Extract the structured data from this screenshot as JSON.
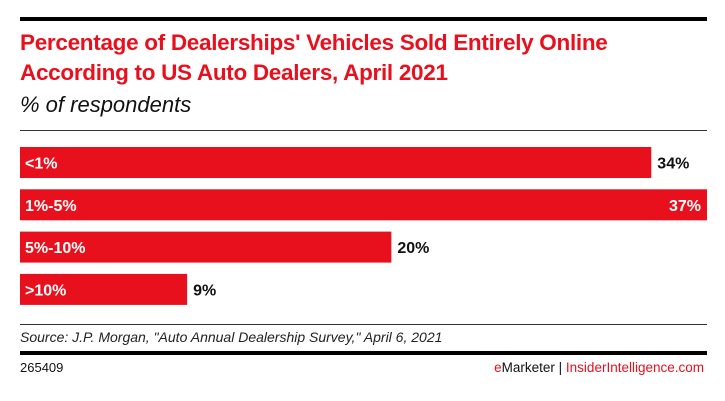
{
  "header": {
    "title": "Percentage of Dealerships' Vehicles Sold Entirely Online According to US Auto Dealers, April 2021",
    "subtitle": "% of respondents"
  },
  "chart_data": {
    "type": "bar",
    "orientation": "horizontal",
    "title": "Percentage of Dealerships' Vehicles Sold Entirely Online According to US Auto Dealers, April 2021",
    "subtitle": "% of respondents",
    "categories": [
      "<1%",
      "1%-5%",
      "5%-10%",
      ">10%"
    ],
    "values": [
      34,
      37,
      20,
      9
    ],
    "value_labels": [
      "34%",
      "37%",
      "20%",
      "9%"
    ],
    "xlabel": "",
    "ylabel": "",
    "xlim": [
      0,
      37
    ],
    "grid": false,
    "legend": "none",
    "bar_color": "#e8101d"
  },
  "footer": {
    "source": "Source: J.P. Morgan, \"Auto Annual Dealership Survey,\" April 6, 2021",
    "chart_id": "265409",
    "brand_e": "e",
    "brand_rest": "Marketer | ",
    "brand_site": "InsiderIntelligence.com"
  },
  "colors": {
    "accent": "#e8101d",
    "text": "#111111"
  }
}
